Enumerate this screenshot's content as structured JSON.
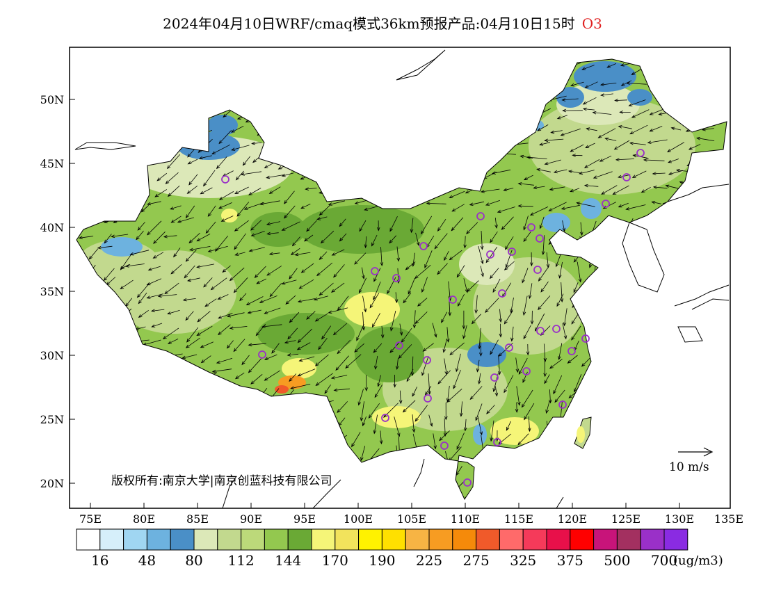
{
  "title": {
    "main": "2024年04月10日WRF/cmaq模式36km预报产品:04月10日15时",
    "species": "O3",
    "species_color": "#e02020"
  },
  "axes": {
    "lat_ticks": [
      "20N",
      "25N",
      "30N",
      "35N",
      "40N",
      "45N",
      "50N"
    ],
    "lon_ticks": [
      "75E",
      "80E",
      "85E",
      "90E",
      "95E",
      "100E",
      "105E",
      "110E",
      "115E",
      "120E",
      "125E",
      "130E",
      "135E"
    ]
  },
  "copyright": "版权所有:南京大学|南京创蓝科技有限公司",
  "wind_scale_label": "10 m/s",
  "colorbar": {
    "unit": "(ug/m3)",
    "labels": [
      "16",
      "48",
      "80",
      "112",
      "144",
      "170",
      "190",
      "225",
      "275",
      "325",
      "375",
      "500",
      "700"
    ],
    "colors": [
      "#ffffff",
      "#d6effa",
      "#a0d6f2",
      "#6db2df",
      "#4a8fc7",
      "#dce8b8",
      "#c2d98e",
      "#bcd97a",
      "#93c84f",
      "#6aa935",
      "#f5f578",
      "#f2e35c",
      "#fff200",
      "#ffe000",
      "#f7b444",
      "#f79c22",
      "#f58a0a",
      "#f05a2a",
      "#ff6a6a",
      "#f53a5a",
      "#e8104a",
      "#ff0000",
      "#c8147a",
      "#a33060",
      "#9a30c8",
      "#8a2be2"
    ]
  },
  "map_colors": {
    "base": "#93c84f",
    "light": "#c2d98e",
    "pale": "#dce8b8",
    "dark": "#6aa935",
    "blue": "#4a8fc7",
    "lightblue": "#6db2df",
    "yellow": "#f5f578",
    "orange": "#f79c22",
    "red": "#f05a2a",
    "station": "#9a30c8"
  }
}
